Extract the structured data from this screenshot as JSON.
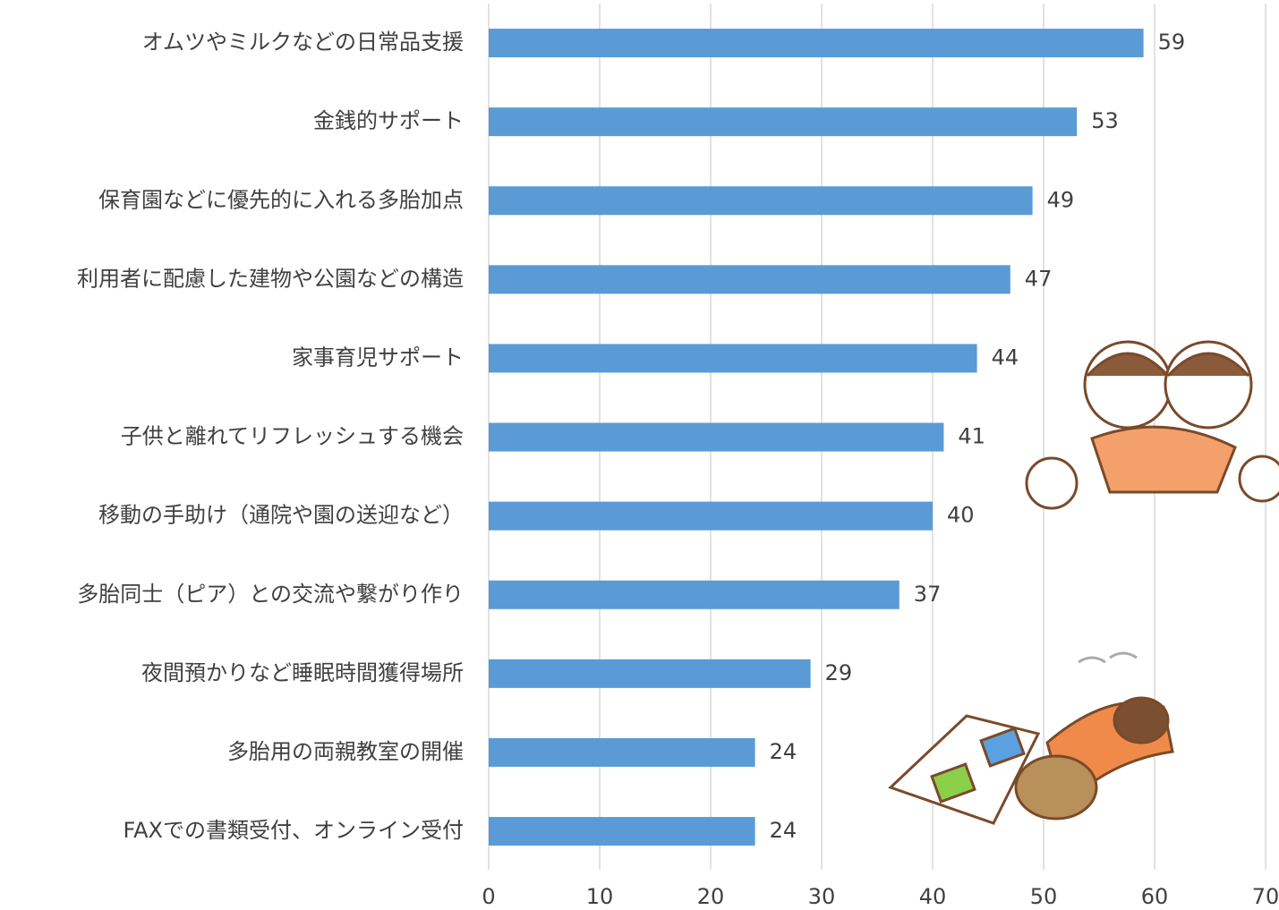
{
  "chart_data": {
    "type": "bar",
    "orientation": "horizontal",
    "categories": [
      "オムツやミルクなどの日常品支援",
      "金銭的サポート",
      "保育園などに優先的に入れる多胎加点",
      "利用者に配慮した建物や公園などの構造",
      "家事育児サポート",
      "子供と離れてリフレッシュする機会",
      "移動の手助け（通院や園の送迎など）",
      "多胎同士（ピア）との交流や繋がり作り",
      "夜間預かりなど睡眠時間獲得場所",
      "多胎用の両親教室の開催",
      "FAXでの書類受付、オンライン受付"
    ],
    "values": [
      59,
      53,
      49,
      47,
      44,
      41,
      40,
      37,
      29,
      24,
      24
    ],
    "color": "#5b9bd5",
    "xlim": [
      0,
      70
    ],
    "xticks": [
      0,
      10,
      20,
      30,
      40,
      50,
      60,
      70
    ],
    "grid": true
  }
}
